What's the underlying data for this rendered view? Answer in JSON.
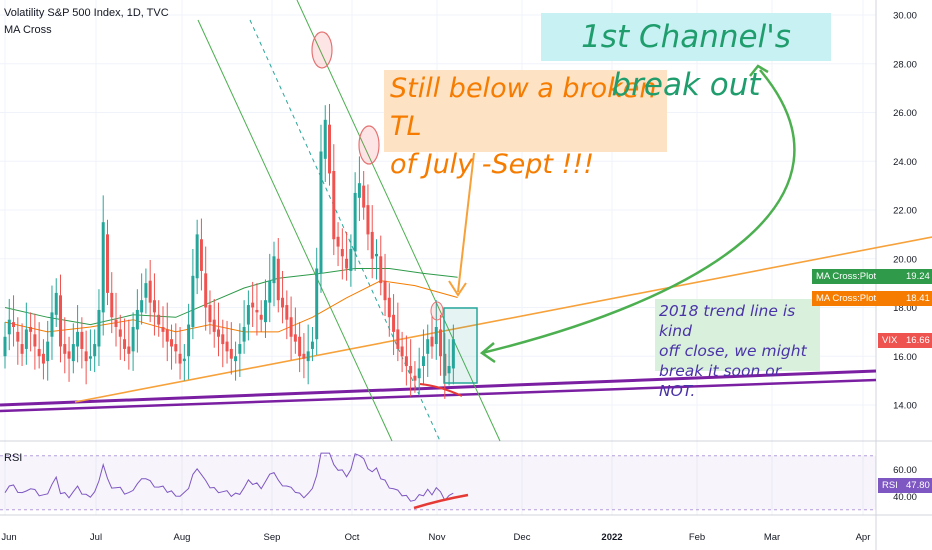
{
  "header": {
    "title": "Volatility S&P 500 Index, 1D, TVC",
    "indicator": "MA Cross",
    "rsi_label": "RSI"
  },
  "annotations": {
    "still_below_line1": "Still below a broken TL",
    "still_below_line2": "of July -Sept !!!",
    "breakout": "1st Channel's break out",
    "trendline_line1": "2018 trend line is kind",
    "trendline_line2": "off close, we might",
    "trendline_line3": "break it soon or NOT."
  },
  "price_tags": {
    "ma_green": {
      "label": "MA Cross:Plot",
      "value": "19.24",
      "color": "#2e9a4a"
    },
    "ma_orange": {
      "label": "MA Cross:Plot",
      "value": "18.41",
      "color": "#f57c00"
    },
    "vix": {
      "label": "VIX",
      "value": "16.66",
      "color": "#ef5350"
    },
    "rsi": {
      "label": "RSI",
      "value": "47.80",
      "color": "#7e57c2"
    }
  },
  "colors": {
    "up": "#26a69a",
    "down": "#ef5350",
    "ma_long": "#2e9a4a",
    "ma_short": "#f57c00",
    "trendline_orange": "#f7a13a",
    "trendline_purple": "#7b1fa2",
    "channel_green": "#4caf50",
    "rsi_line": "#7e57c2"
  },
  "chart_data": {
    "type": "line",
    "title": "Volatility S&P 500 Index, 1D, TVC",
    "y_ticks": [
      "14.00",
      "16.00",
      "18.00",
      "20.00",
      "22.00",
      "24.00",
      "26.00",
      "28.00",
      "30.00"
    ],
    "ylim": [
      13.0,
      30.4
    ],
    "x_ticks": [
      "Jun",
      "Jul",
      "Aug",
      "Sep",
      "Oct",
      "Nov",
      "Dec",
      "2022",
      "Feb",
      "Mar",
      "Apr"
    ],
    "x_tick_dates": [
      "2021-06-01",
      "2021-07-01",
      "2021-08-01",
      "2021-09-01",
      "2021-10-01",
      "2021-11-01",
      "2021-12-01",
      "2022-01-01",
      "2022-02-01",
      "2022-03-01",
      "2022-04-01"
    ],
    "candles_close": [
      16.8,
      17.5,
      17.2,
      16.6,
      16.1,
      17.1,
      17.0,
      16.4,
      16.0,
      15.7,
      16.6,
      17.8,
      18.6,
      16.4,
      16.1,
      15.9,
      16.5,
      17.0,
      16.3,
      15.8,
      16.0,
      16.5,
      17.9,
      21.5,
      18.6,
      17.6,
      17.2,
      16.8,
      16.3,
      16.1,
      17.2,
      17.9,
      18.3,
      19.0,
      18.2,
      17.8,
      17.3,
      17.0,
      16.6,
      16.4,
      16.2,
      15.7,
      15.9,
      17.3,
      19.3,
      21.0,
      19.5,
      18.0,
      17.4,
      17.0,
      16.8,
      16.5,
      16.2,
      15.9,
      16.0,
      16.5,
      17.2,
      18.1,
      18.0,
      17.8,
      17.5,
      18.3,
      19.1,
      20.1,
      18.3,
      18.0,
      17.5,
      16.8,
      16.6,
      16.0,
      15.9,
      16.2,
      16.6,
      19.6,
      24.4,
      25.7,
      23.5,
      20.8,
      20.5,
      20.1,
      19.6,
      20.4,
      22.7,
      23.1,
      22.1,
      21.0,
      20.0,
      20.2,
      19.0,
      18.3,
      17.6,
      17.0,
      16.3,
      16.0,
      15.6,
      15.3,
      15.0,
      15.5,
      16.0,
      16.7,
      16.4,
      17.2,
      16.0,
      15.2,
      15.6,
      16.7
    ],
    "candles_open": [
      16.0,
      16.9,
      17.4,
      17.0,
      16.5,
      16.3,
      17.2,
      16.9,
      16.3,
      16.1,
      15.8,
      16.8,
      17.7,
      18.5,
      16.5,
      16.2,
      15.8,
      16.4,
      17.0,
      16.2,
      15.9,
      16.0,
      16.4,
      17.8,
      21.0,
      18.6,
      17.5,
      17.1,
      16.7,
      16.4,
      16.2,
      17.1,
      17.8,
      18.4,
      19.1,
      18.3,
      17.7,
      17.2,
      17.1,
      16.7,
      16.5,
      16.1,
      15.8,
      16.0,
      17.2,
      19.2,
      20.8,
      19.4,
      18.1,
      17.5,
      17.1,
      16.9,
      16.6,
      16.3,
      15.8,
      16.1,
      16.6,
      17.3,
      18.2,
      17.9,
      17.7,
      17.4,
      18.2,
      19.0,
      20.0,
      18.4,
      18.1,
      17.6,
      16.9,
      16.8,
      16.1,
      15.8,
      16.3,
      16.7,
      19.4,
      24.1,
      25.5,
      23.6,
      20.9,
      20.4,
      20.0,
      19.5,
      20.3,
      22.5,
      23.0,
      22.2,
      21.1,
      20.1,
      20.1,
      19.1,
      18.4,
      17.7,
      17.1,
      16.4,
      16.0,
      15.6,
      15.2,
      15.1,
      15.6,
      16.1,
      16.8,
      16.5,
      17.1,
      16.1,
      15.3,
      15.5
    ],
    "series": [
      {
        "name": "MA Cross:Plot",
        "color": "#2e9a4a",
        "values_by_x": [
          [
            0,
            18.0
          ],
          [
            10,
            17.6
          ],
          [
            20,
            17.3
          ],
          [
            30,
            17.7
          ],
          [
            40,
            17.6
          ],
          [
            48,
            18.2
          ],
          [
            56,
            18.8
          ],
          [
            64,
            19.2
          ],
          [
            74,
            19.4
          ],
          [
            82,
            19.6
          ],
          [
            90,
            19.6
          ],
          [
            98,
            19.4
          ],
          [
            106,
            19.24
          ]
        ]
      },
      {
        "name": "MA Cross:Plot",
        "color": "#f57c00",
        "values_by_x": [
          [
            0,
            17.4
          ],
          [
            10,
            17.0
          ],
          [
            20,
            17.2
          ],
          [
            30,
            17.5
          ],
          [
            40,
            17.0
          ],
          [
            48,
            17.3
          ],
          [
            56,
            17.0
          ],
          [
            64,
            17.0
          ],
          [
            72,
            17.6
          ],
          [
            80,
            18.4
          ],
          [
            88,
            19.1
          ],
          [
            96,
            18.9
          ],
          [
            106,
            18.41
          ]
        ]
      }
    ],
    "rsi": {
      "y_ticks": [
        "40.00",
        "60.00"
      ],
      "ylim": [
        30,
        75
      ],
      "last": 47.8
    }
  }
}
